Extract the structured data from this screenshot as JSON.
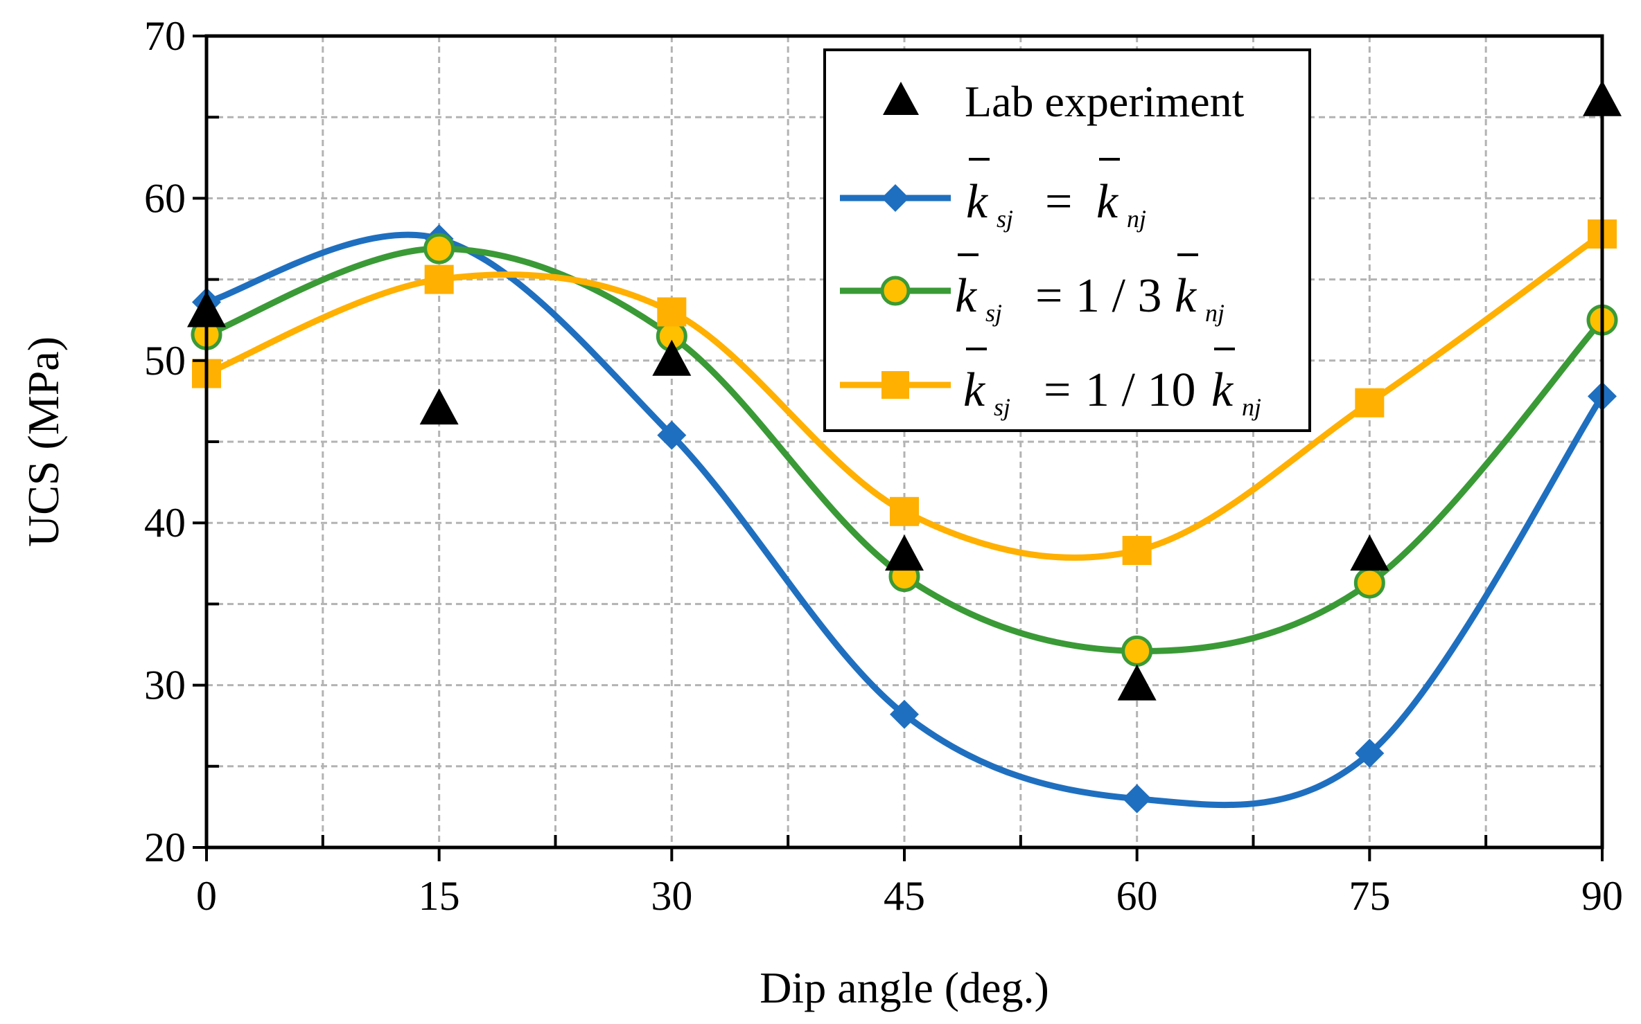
{
  "chart_data": {
    "type": "line",
    "title": "",
    "xlabel": "Dip angle (deg.)",
    "ylabel": "UCS (MPa)",
    "xlim": [
      0,
      90
    ],
    "ylim": [
      20,
      70
    ],
    "xticks": [
      0,
      15,
      30,
      45,
      60,
      75,
      90
    ],
    "yticks": [
      20,
      30,
      40,
      50,
      60,
      70
    ],
    "xtick_labels": [
      "0",
      "15",
      "30",
      "45",
      "60",
      "75",
      "90"
    ],
    "ytick_labels": [
      "20",
      "30",
      "40",
      "50",
      "60",
      "70"
    ],
    "grid": true,
    "legend_position": "top-right",
    "x": [
      0,
      15,
      30,
      45,
      60,
      75,
      90
    ],
    "series": [
      {
        "name": "Lab experiment",
        "kind": "scatter",
        "marker": "triangle",
        "color": "#000000",
        "values": [
          53,
          47,
          50,
          38,
          30,
          38,
          66
        ]
      },
      {
        "name": "k_sj = k_nj",
        "label_parts": {
          "lhs": "k",
          "lhs_sub": "sj",
          "op": "=",
          "coef": "",
          "rhs": "k",
          "rhs_sub": "nj"
        },
        "kind": "smooth-line",
        "marker": "diamond",
        "color": "#1f6fc0",
        "marker_fill": "#1f6fc0",
        "values": [
          53.6,
          57.5,
          45.4,
          28.2,
          23.0,
          25.8,
          47.8
        ]
      },
      {
        "name": "k_sj = 1/3 k_nj",
        "label_parts": {
          "lhs": "k",
          "lhs_sub": "sj",
          "op": "=",
          "coef": "1 / 3",
          "rhs": "k",
          "rhs_sub": "nj"
        },
        "kind": "smooth-line",
        "marker": "circle",
        "color": "#3a9a36",
        "marker_fill": "#ffc000",
        "values": [
          51.6,
          56.9,
          51.5,
          36.7,
          32.1,
          36.3,
          52.5
        ]
      },
      {
        "name": "k_sj = 1/10 k_nj",
        "label_parts": {
          "lhs": "k",
          "lhs_sub": "sj",
          "op": "=",
          "coef": "1 / 10",
          "rhs": "k",
          "rhs_sub": "nj"
        },
        "kind": "smooth-line",
        "marker": "square",
        "color": "#ffb000",
        "marker_fill": "#ffb000",
        "values": [
          49.2,
          55.0,
          53.0,
          40.7,
          38.3,
          47.4,
          57.8
        ]
      }
    ]
  }
}
